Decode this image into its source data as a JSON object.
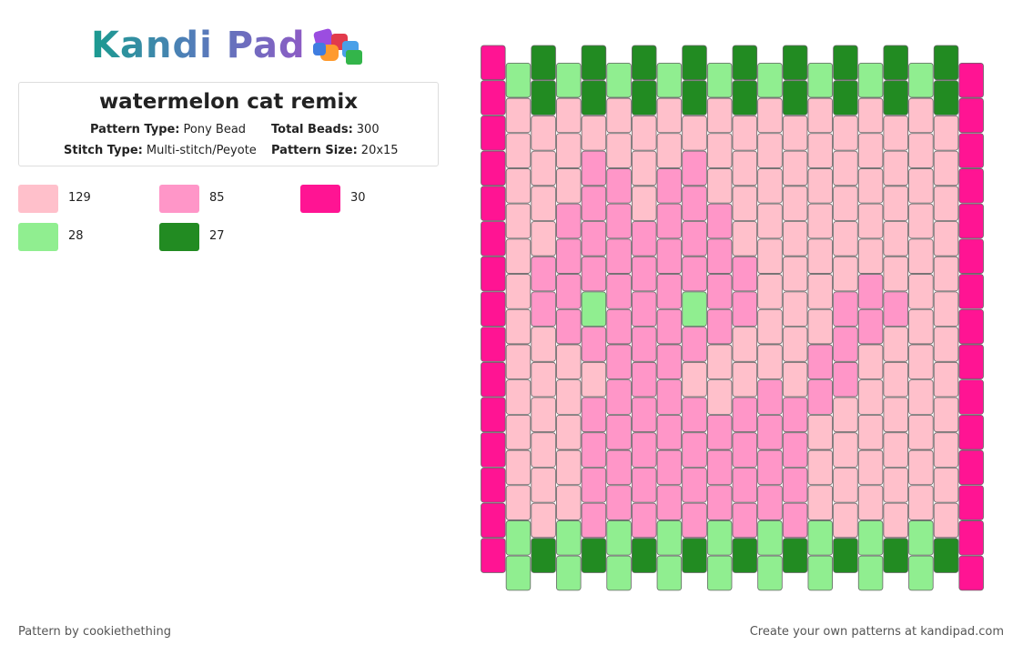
{
  "logo": "Kandi Pad",
  "title": "watermelon cat remix",
  "details": [
    {
      "label": "Pattern Type:",
      "value": "Pony Bead"
    },
    {
      "label": "Total Beads:",
      "value": 300
    },
    {
      "label": "Stitch Type:",
      "value": "Multi-stitch/Peyote"
    },
    {
      "label": "Pattern Size:",
      "value": "20x15"
    }
  ],
  "legend": [
    {
      "color": "#ffc0cb",
      "count": 129
    },
    {
      "color": "#ff96c8",
      "count": 85
    },
    {
      "color": "#ff1493",
      "count": 30
    },
    {
      "color": "#90ee90",
      "count": 28
    },
    {
      "color": "#228b22",
      "count": 27
    }
  ],
  "footer": {
    "left": "Pattern by cookiethething",
    "right": "Create your own patterns at kandipad.com"
  }
}
